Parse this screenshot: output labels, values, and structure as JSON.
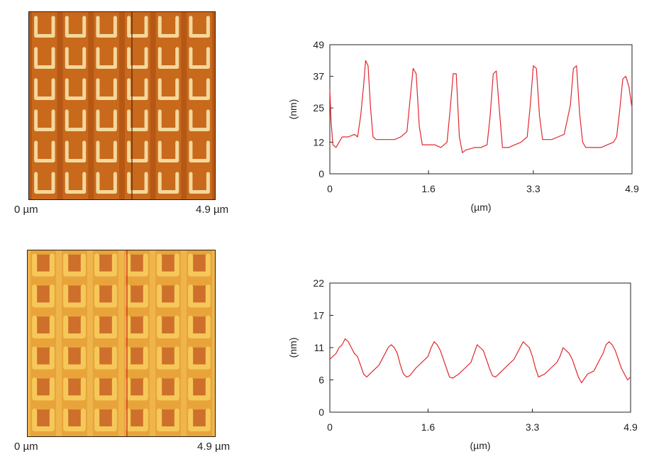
{
  "images": [
    {
      "left_label": "0 µm",
      "right_label": "4.9 µm",
      "palette": {
        "bg": "#c9691c",
        "ridge": "#a64a10",
        "mark": "#f3d89c",
        "glow": "#e59a45",
        "line": "#5a2a08"
      }
    },
    {
      "left_label": "0 µm",
      "right_label": "4.9 µm",
      "palette": {
        "bg": "#e8a43a",
        "ridge": "#f2c25a",
        "mark": "#f6c85a",
        "glow": "#b8431f",
        "line": "#d42a1a"
      }
    }
  ],
  "chart_data": [
    {
      "type": "line",
      "title": "",
      "xlabel": "(µm)",
      "ylabel": "(nm)",
      "xlim": [
        0,
        4.9
      ],
      "ylim": [
        0,
        49
      ],
      "xticks": [
        "0",
        "1.6",
        "3.3",
        "4.9"
      ],
      "xtick_values": [
        0,
        1.6,
        3.3,
        4.9
      ],
      "yticks": [
        "0",
        "12",
        "25",
        "37",
        "49"
      ],
      "ytick_values": [
        0,
        12,
        25,
        37,
        49
      ],
      "grid": false,
      "color": "#e0272f",
      "series": [
        {
          "x": [
            0,
            0.02,
            0.05,
            0.1,
            0.15,
            0.2,
            0.3,
            0.4,
            0.45,
            0.5,
            0.55,
            0.58,
            0.62,
            0.66,
            0.7,
            0.75,
            0.85,
            0.95,
            1.05,
            1.15,
            1.25,
            1.3,
            1.35,
            1.4,
            1.45,
            1.5,
            1.6,
            1.7,
            1.8,
            1.9,
            1.95,
            2.0,
            2.05,
            2.1,
            2.15,
            2.2,
            2.35,
            2.45,
            2.55,
            2.6,
            2.65,
            2.7,
            2.75,
            2.8,
            2.9,
            3.0,
            3.1,
            3.2,
            3.25,
            3.3,
            3.35,
            3.4,
            3.45,
            3.5,
            3.6,
            3.7,
            3.8,
            3.9,
            3.95,
            4.0,
            4.05,
            4.1,
            4.15,
            4.2,
            4.3,
            4.4,
            4.5,
            4.6,
            4.65,
            4.7,
            4.75,
            4.8,
            4.85,
            4.9
          ],
          "y": [
            32,
            20,
            11,
            10,
            12,
            14,
            14,
            15,
            14,
            22,
            34,
            43,
            41,
            25,
            14,
            13,
            13,
            13,
            13,
            14,
            16,
            28,
            40,
            38,
            18,
            11,
            11,
            11,
            10,
            12,
            24,
            38,
            38,
            14,
            8,
            9,
            10,
            10,
            11,
            22,
            38,
            39,
            24,
            10,
            10,
            11,
            12,
            14,
            26,
            41,
            40,
            22,
            13,
            13,
            13,
            14,
            15,
            26,
            40,
            41,
            23,
            12,
            10,
            10,
            10,
            10,
            11,
            12,
            14,
            24,
            36,
            37,
            33,
            25
          ]
        }
      ]
    },
    {
      "type": "line",
      "title": "",
      "xlabel": "(µm)",
      "ylabel": "(nm)",
      "xlim": [
        0,
        4.9
      ],
      "ylim": [
        0,
        22
      ],
      "xticks": [
        "0",
        "1.6",
        "3.3",
        "4.9"
      ],
      "xtick_values": [
        0,
        1.6,
        3.3,
        4.9
      ],
      "yticks": [
        "0",
        "6",
        "11",
        "17",
        "22"
      ],
      "ytick_values": [
        0,
        5.5,
        11,
        16.5,
        22
      ],
      "grid": false,
      "color": "#e0272f",
      "series": [
        {
          "x": [
            0,
            0.05,
            0.1,
            0.15,
            0.2,
            0.25,
            0.3,
            0.35,
            0.4,
            0.45,
            0.5,
            0.55,
            0.6,
            0.7,
            0.8,
            0.9,
            0.95,
            1.0,
            1.05,
            1.1,
            1.15,
            1.2,
            1.25,
            1.3,
            1.4,
            1.5,
            1.6,
            1.65,
            1.7,
            1.75,
            1.8,
            1.85,
            1.9,
            1.95,
            2.0,
            2.1,
            2.2,
            2.3,
            2.35,
            2.4,
            2.45,
            2.5,
            2.55,
            2.6,
            2.65,
            2.7,
            2.8,
            2.9,
            3.0,
            3.05,
            3.1,
            3.15,
            3.2,
            3.25,
            3.3,
            3.35,
            3.4,
            3.5,
            3.6,
            3.7,
            3.75,
            3.8,
            3.85,
            3.9,
            3.95,
            4.0,
            4.05,
            4.1,
            4.2,
            4.3,
            4.35,
            4.4,
            4.45,
            4.5,
            4.55,
            4.6,
            4.65,
            4.7,
            4.75,
            4.8,
            4.85,
            4.9
          ],
          "y": [
            9,
            9.5,
            10,
            11,
            11.5,
            12.5,
            12,
            11,
            10,
            9.5,
            8,
            6.5,
            6,
            7,
            8,
            10,
            11,
            11.5,
            11,
            10,
            8,
            6.5,
            6,
            6.2,
            7.5,
            8.5,
            9.5,
            11,
            12,
            11.5,
            10.5,
            9,
            7.5,
            6,
            5.8,
            6.5,
            7.5,
            8.5,
            10,
            11.5,
            11,
            10.5,
            9,
            7.5,
            6.2,
            6,
            7,
            8,
            9,
            10,
            11,
            12,
            11.5,
            11,
            9.5,
            7.5,
            6,
            6.5,
            7.5,
            8.5,
            9.5,
            11,
            10.5,
            10,
            9,
            7.5,
            6,
            5,
            6.5,
            7,
            8,
            9,
            10,
            11.5,
            12,
            11.5,
            10.5,
            9,
            7.5,
            6.5,
            5.5,
            6
          ]
        }
      ]
    }
  ]
}
